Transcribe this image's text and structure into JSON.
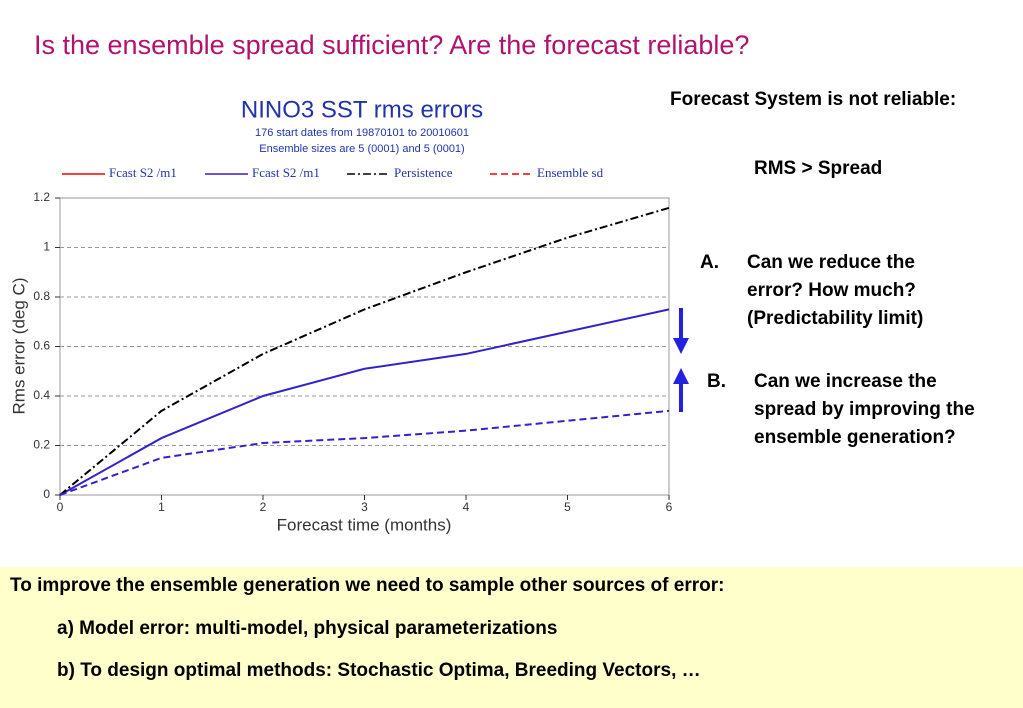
{
  "title": "Is the ensemble  spread sufficient? Are the forecast reliable?",
  "notes": {
    "heading": "Forecast System is not reliable:",
    "rule": "RMS > Spread",
    "items": [
      {
        "marker": "A.",
        "text": "Can we reduce the error? How much? (Predictability limit)"
      },
      {
        "marker": "B.",
        "text": "Can we increase the spread by improving the ensemble generation?"
      }
    ]
  },
  "footer": {
    "lines": [
      "To improve the ensemble generation we need to sample other sources of error:",
      "a) Model error: multi-model, physical parameterizations",
      "b) To design optimal methods: Stochastic Optima, Breeding Vectors, …"
    ]
  },
  "chart_data": {
    "type": "line",
    "title": "NINO3 SST rms errors",
    "subtitle": [
      "176 start dates from 19870101  to 20010601",
      "Ensemble sizes are  5 (0001)  and  5 (0001)"
    ],
    "x_label": "Forecast time (months)",
    "y_label": "Rms error (deg C)",
    "x": [
      0,
      1,
      2,
      3,
      4,
      5,
      6
    ],
    "series": [
      {
        "name": "Fcast S2  /m1",
        "color": "#ff0000",
        "dash": "solid",
        "values": [
          null,
          null,
          null,
          null,
          null,
          null,
          null
        ]
      },
      {
        "name": "Fcast S2  /m1",
        "color": "#3322cc",
        "dash": "solid",
        "values": [
          0,
          0.23,
          0.4,
          0.51,
          0.57,
          0.66,
          0.75
        ]
      },
      {
        "name": "Persistence",
        "color": "#000000",
        "dash": "dashdot",
        "values": [
          0,
          0.34,
          0.57,
          0.75,
          0.9,
          1.04,
          1.16
        ]
      },
      {
        "name": "Ensemble sd",
        "color": "#3322cc",
        "legend_color": "#ff0000",
        "dash": "dashed",
        "values": [
          0,
          0.15,
          0.21,
          0.23,
          0.26,
          0.3,
          0.34
        ]
      }
    ],
    "xlim": [
      0,
      6
    ],
    "xticks": [
      0,
      1,
      2,
      3,
      4,
      5,
      6
    ],
    "ylim": [
      0,
      1.2
    ],
    "yticks": [
      0,
      0.2,
      0.4,
      0.6,
      0.8,
      1,
      1.2
    ],
    "grid": true
  }
}
